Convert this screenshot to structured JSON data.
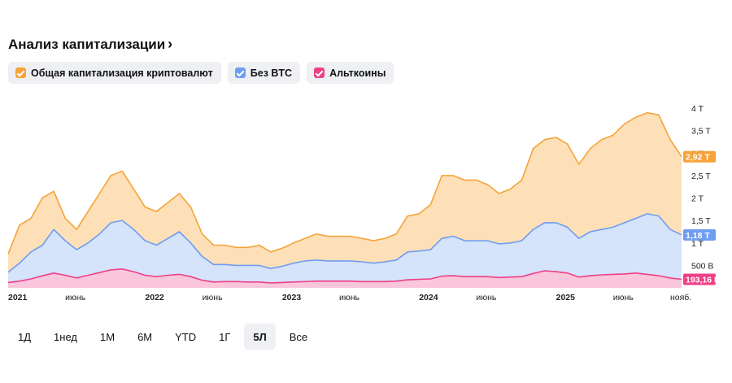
{
  "header": {
    "title": "Анализ капитализации",
    "chevron": "›"
  },
  "legend": [
    {
      "label": "Общая капитализация криптовалют",
      "color": "#f5a33a"
    },
    {
      "label": "Без BTC",
      "color": "#6f9df0"
    },
    {
      "label": "Альткоины",
      "color": "#ee3f86"
    }
  ],
  "ranges": [
    {
      "label": "1Д",
      "active": false
    },
    {
      "label": "1нед",
      "active": false
    },
    {
      "label": "1М",
      "active": false
    },
    {
      "label": "6М",
      "active": false
    },
    {
      "label": "YTD",
      "active": false
    },
    {
      "label": "1Г",
      "active": false
    },
    {
      "label": "5Л",
      "active": true
    },
    {
      "label": "Все",
      "active": false
    }
  ],
  "chart_data": {
    "type": "area",
    "x_start": "2021-01",
    "x_step": "месяц",
    "y_axis_side": "right",
    "ylim": [
      0,
      4.2
    ],
    "y_ticks": [
      {
        "value": 0.5,
        "label": "500 B"
      },
      {
        "value": 1,
        "label": "1 T"
      },
      {
        "value": 1.5,
        "label": "1,5 T"
      },
      {
        "value": 2,
        "label": "2 T"
      },
      {
        "value": 2.5,
        "label": "2,5 T"
      },
      {
        "value": 3,
        "label": "3 T"
      },
      {
        "value": 3.5,
        "label": "3,5 T"
      },
      {
        "value": 4,
        "label": "4 T"
      }
    ],
    "x_ticks": [
      {
        "month_index": 0,
        "label": "2021"
      },
      {
        "month_index": 5,
        "label": "июнь"
      },
      {
        "month_index": 12,
        "label": "2022"
      },
      {
        "month_index": 17,
        "label": "июнь"
      },
      {
        "month_index": 24,
        "label": "2023"
      },
      {
        "month_index": 29,
        "label": "июнь"
      },
      {
        "month_index": 36,
        "label": "2024"
      },
      {
        "month_index": 41,
        "label": "июнь"
      },
      {
        "month_index": 48,
        "label": "2025"
      },
      {
        "month_index": 53,
        "label": "июнь"
      },
      {
        "month_index": 58,
        "label": "нояб."
      }
    ],
    "series": [
      {
        "name": "Общая капитализация криптовалют",
        "color": "#f5a33a",
        "fill": "#fde0b8",
        "last_label": "2,92 T",
        "values": [
          0.75,
          1.4,
          1.55,
          2.0,
          2.15,
          1.55,
          1.3,
          1.7,
          2.1,
          2.5,
          2.6,
          2.2,
          1.8,
          1.7,
          1.9,
          2.1,
          1.8,
          1.2,
          0.95,
          0.95,
          0.9,
          0.9,
          0.95,
          0.8,
          0.88,
          1.0,
          1.1,
          1.2,
          1.15,
          1.15,
          1.15,
          1.1,
          1.05,
          1.1,
          1.2,
          1.6,
          1.65,
          1.85,
          2.5,
          2.5,
          2.4,
          2.4,
          2.3,
          2.1,
          2.2,
          2.4,
          3.1,
          3.3,
          3.35,
          3.2,
          2.75,
          3.1,
          3.3,
          3.4,
          3.65,
          3.8,
          3.9,
          3.85,
          3.3,
          2.92
        ]
      },
      {
        "name": "Без BTC",
        "color": "#6f9df0",
        "fill": "#d5e3fb",
        "last_label": "1,18 T",
        "values": [
          0.35,
          0.55,
          0.8,
          0.95,
          1.3,
          1.05,
          0.85,
          1.0,
          1.2,
          1.45,
          1.5,
          1.3,
          1.05,
          0.95,
          1.1,
          1.25,
          1.0,
          0.7,
          0.52,
          0.52,
          0.5,
          0.5,
          0.5,
          0.43,
          0.48,
          0.55,
          0.6,
          0.62,
          0.6,
          0.6,
          0.6,
          0.58,
          0.55,
          0.58,
          0.62,
          0.8,
          0.82,
          0.85,
          1.1,
          1.15,
          1.05,
          1.05,
          1.05,
          0.98,
          1.0,
          1.05,
          1.3,
          1.45,
          1.45,
          1.35,
          1.1,
          1.25,
          1.3,
          1.35,
          1.45,
          1.55,
          1.65,
          1.6,
          1.3,
          1.18
        ]
      },
      {
        "name": "Альткоины",
        "color": "#ee3f86",
        "fill": "#f9c6dc",
        "last_label": "193,16 B",
        "values": [
          0.12,
          0.15,
          0.2,
          0.27,
          0.33,
          0.28,
          0.22,
          0.28,
          0.34,
          0.4,
          0.42,
          0.36,
          0.28,
          0.25,
          0.28,
          0.3,
          0.25,
          0.17,
          0.13,
          0.14,
          0.14,
          0.13,
          0.13,
          0.11,
          0.12,
          0.13,
          0.14,
          0.15,
          0.15,
          0.15,
          0.15,
          0.14,
          0.14,
          0.14,
          0.15,
          0.18,
          0.19,
          0.2,
          0.26,
          0.27,
          0.25,
          0.25,
          0.25,
          0.23,
          0.24,
          0.25,
          0.32,
          0.38,
          0.36,
          0.33,
          0.24,
          0.27,
          0.29,
          0.3,
          0.31,
          0.33,
          0.3,
          0.27,
          0.22,
          0.19
        ]
      }
    ]
  }
}
